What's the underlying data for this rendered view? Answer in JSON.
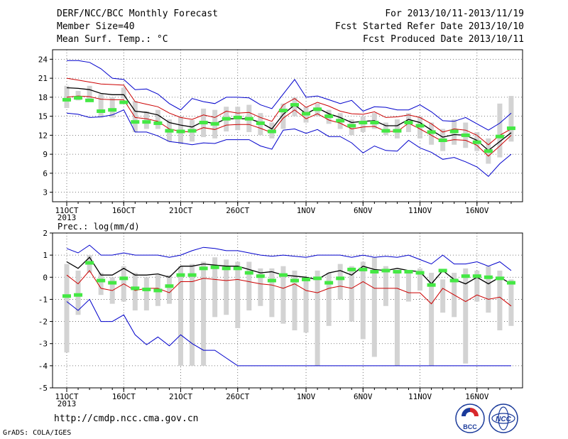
{
  "header": {
    "title": "DERF/NCC/BCC Monthly Forecast",
    "member": "Member Size=40",
    "variable": "Mean Surf. Temp.: °C",
    "period": "For 2013/10/11-2013/11/19",
    "start": "Fcst Started Refer Date 2013/10/10",
    "produced": "Fcst Produced Date 2013/10/11"
  },
  "footer": {
    "url": "http://cmdp.ncc.cma.gov.cn",
    "credit": "GrADS: COLA/IGES",
    "logo_bcc": "BCC",
    "logo_ncc": "NCC"
  },
  "chart_data": [
    {
      "type": "line",
      "ylabel": "Mean Surf. Temp.: °C",
      "xlabel": "",
      "x": [
        1,
        2,
        3,
        4,
        5,
        6,
        7,
        8,
        9,
        10,
        11,
        12,
        13,
        14,
        15,
        16,
        17,
        18,
        19,
        20,
        21,
        22,
        23,
        24,
        25,
        26,
        27,
        28,
        29,
        30,
        31,
        32,
        33,
        34,
        35,
        36,
        37,
        38,
        39,
        40
      ],
      "ylim": [
        1.5,
        25.5
      ],
      "yticks": [
        24,
        21,
        18,
        15,
        12,
        9,
        6,
        3
      ],
      "xticks": [
        {
          "x": 1,
          "label": "11OCT",
          "sub": "2013"
        },
        {
          "x": 6,
          "label": "16OCT"
        },
        {
          "x": 11,
          "label": "21OCT"
        },
        {
          "x": 16,
          "label": "26OCT"
        },
        {
          "x": 22,
          "label": "1NOV"
        },
        {
          "x": 27,
          "label": "6NOV"
        },
        {
          "x": 32,
          "label": "11NOV"
        },
        {
          "x": 37,
          "label": "16NOV"
        }
      ],
      "grid": true,
      "series": [
        {
          "role": "max",
          "color": "#0000cc",
          "values": [
            23.8,
            23.8,
            23.5,
            22.5,
            21.0,
            20.8,
            19.2,
            19.3,
            18.5,
            17.0,
            16.0,
            17.8,
            17.3,
            17.0,
            18.0,
            18.0,
            17.9,
            16.8,
            16.2,
            18.5,
            20.8,
            18.0,
            18.2,
            17.6,
            17.0,
            17.5,
            15.8,
            16.5,
            16.4,
            16.0,
            16.0,
            16.8,
            15.7,
            14.3,
            14.2,
            14.8,
            13.8,
            12.8,
            13.9,
            15.5
          ]
        },
        {
          "role": "p90",
          "color": "#cc0000",
          "values": [
            21.0,
            20.7,
            20.4,
            20.1,
            20.0,
            19.9,
            17.3,
            16.9,
            16.5,
            15.5,
            14.8,
            14.5,
            15.2,
            14.8,
            15.8,
            15.5,
            15.6,
            14.8,
            14.2,
            16.8,
            17.8,
            16.4,
            17.2,
            16.6,
            15.8,
            15.4,
            15.3,
            15.7,
            14.8,
            14.9,
            15.2,
            14.8,
            13.8,
            12.5,
            13.0,
            12.8,
            12.0,
            10.5,
            12.0,
            13.0
          ]
        },
        {
          "role": "mean",
          "color": "#000000",
          "values": [
            19.5,
            19.4,
            19.2,
            18.6,
            18.4,
            18.4,
            15.8,
            15.6,
            15.2,
            14.0,
            13.6,
            13.3,
            14.2,
            13.8,
            14.6,
            14.6,
            14.6,
            14.0,
            13.0,
            15.3,
            16.8,
            15.4,
            16.3,
            15.4,
            14.8,
            14.0,
            14.2,
            14.3,
            13.5,
            13.5,
            14.5,
            14.0,
            12.8,
            11.7,
            12.1,
            12.0,
            11.2,
            9.6,
            11.0,
            12.4
          ]
        },
        {
          "role": "p10",
          "color": "#cc0000",
          "values": [
            18.0,
            18.2,
            18.1,
            17.7,
            17.6,
            17.6,
            14.8,
            14.6,
            14.2,
            13.0,
            12.6,
            12.5,
            13.2,
            12.9,
            13.6,
            13.7,
            13.7,
            13.1,
            12.4,
            14.7,
            16.0,
            14.6,
            15.4,
            14.4,
            13.9,
            13.0,
            13.3,
            13.4,
            12.6,
            12.6,
            13.9,
            13.0,
            12.0,
            11.0,
            11.3,
            11.2,
            10.4,
            8.7,
            10.3,
            12.0
          ]
        },
        {
          "role": "min",
          "color": "#0000cc",
          "values": [
            15.5,
            15.3,
            14.8,
            14.9,
            15.2,
            16.0,
            12.5,
            12.5,
            11.9,
            11.0,
            10.8,
            10.5,
            10.8,
            10.7,
            11.3,
            11.3,
            11.3,
            10.3,
            9.8,
            12.8,
            13.0,
            12.3,
            12.9,
            11.8,
            11.8,
            10.8,
            9.2,
            10.3,
            9.6,
            9.5,
            11.2,
            10.0,
            9.3,
            8.2,
            8.5,
            7.8,
            7.0,
            5.5,
            7.5,
            9.0
          ]
        }
      ],
      "observed": [
        17.6,
        17.9,
        17.5,
        15.8,
        16.0,
        17.2,
        14.1,
        14.1,
        13.9,
        12.7,
        12.6,
        12.7,
        14.0,
        13.8,
        14.6,
        14.8,
        14.6,
        13.9,
        12.6,
        15.9,
        16.8,
        15.4,
        16.1,
        15.0,
        14.3,
        13.5,
        14.0,
        14.0,
        12.7,
        12.7,
        14.0,
        13.5,
        12.5,
        11.2,
        12.6,
        12.0,
        10.9,
        9.5,
        11.8,
        13.1
      ],
      "ranges": [
        [
          16.3,
          19.8
        ],
        [
          17.5,
          19.0
        ],
        [
          17.3,
          19.8
        ],
        [
          14.8,
          18.5
        ],
        [
          14.8,
          18.0
        ],
        [
          17.8,
          19.5
        ],
        [
          12.5,
          17.4
        ],
        [
          13.0,
          15.8
        ],
        [
          13.0,
          16.0
        ],
        [
          11.0,
          14.5
        ],
        [
          10.6,
          15.0
        ],
        [
          11.0,
          14.4
        ],
        [
          11.7,
          16.2
        ],
        [
          11.5,
          16.0
        ],
        [
          12.6,
          16.5
        ],
        [
          12.8,
          16.5
        ],
        [
          12.5,
          16.8
        ],
        [
          12.0,
          15.5
        ],
        [
          11.5,
          14.0
        ],
        [
          13.0,
          17.0
        ],
        [
          15.0,
          18.0
        ],
        [
          14.0,
          16.5
        ],
        [
          15.0,
          17.0
        ],
        [
          13.8,
          16.0
        ],
        [
          13.0,
          15.5
        ],
        [
          12.0,
          14.5
        ],
        [
          12.5,
          15.0
        ],
        [
          13.0,
          15.5
        ],
        [
          12.0,
          14.0
        ],
        [
          11.5,
          14.5
        ],
        [
          12.5,
          15.5
        ],
        [
          11.5,
          15.0
        ],
        [
          10.5,
          14.0
        ],
        [
          9.5,
          13.0
        ],
        [
          10.5,
          14.5
        ],
        [
          10.0,
          14.0
        ],
        [
          9.5,
          12.5
        ],
        [
          7.5,
          11.5
        ],
        [
          8.5,
          17.0
        ],
        [
          11.0,
          18.2
        ]
      ]
    },
    {
      "type": "line",
      "ylabel": "Prec.: log(mm/d)",
      "xlabel": "",
      "x": [
        1,
        2,
        3,
        4,
        5,
        6,
        7,
        8,
        9,
        10,
        11,
        12,
        13,
        14,
        15,
        16,
        17,
        18,
        19,
        20,
        21,
        22,
        23,
        24,
        25,
        26,
        27,
        28,
        29,
        30,
        31,
        32,
        33,
        34,
        35,
        36,
        37,
        38,
        39,
        40
      ],
      "ylim": [
        -5,
        2
      ],
      "yticks": [
        2,
        1,
        0,
        -1,
        -2,
        -3,
        -4,
        -5
      ],
      "xticks": [
        {
          "x": 1,
          "label": "11OCT",
          "sub": "2013"
        },
        {
          "x": 6,
          "label": "16OCT"
        },
        {
          "x": 11,
          "label": "21OCT"
        },
        {
          "x": 16,
          "label": "26OCT"
        },
        {
          "x": 22,
          "label": "1NOV"
        },
        {
          "x": 27,
          "label": "6NOV"
        },
        {
          "x": 32,
          "label": "11NOV"
        },
        {
          "x": 37,
          "label": "16NOV"
        }
      ],
      "grid": true,
      "series": [
        {
          "role": "max",
          "color": "#0000cc",
          "values": [
            1.3,
            1.1,
            1.45,
            1.0,
            1.0,
            1.1,
            1.0,
            1.0,
            1.0,
            0.9,
            1.0,
            1.2,
            1.35,
            1.3,
            1.2,
            1.2,
            1.1,
            1.0,
            0.95,
            1.0,
            0.95,
            0.9,
            1.0,
            1.0,
            1.0,
            0.9,
            1.0,
            0.9,
            0.95,
            0.9,
            1.0,
            0.8,
            0.6,
            1.0,
            0.6,
            0.6,
            0.7,
            0.5,
            0.7,
            0.3
          ]
        },
        {
          "role": "mean",
          "color": "#000000",
          "values": [
            0.7,
            0.4,
            0.9,
            0.1,
            0.1,
            0.4,
            0.1,
            0.1,
            0.15,
            0.0,
            0.5,
            0.5,
            0.6,
            0.55,
            0.5,
            0.5,
            0.35,
            0.2,
            0.25,
            0.1,
            0.05,
            0.0,
            -0.1,
            0.2,
            0.3,
            0.1,
            0.5,
            0.35,
            0.3,
            0.4,
            0.3,
            0.25,
            -0.3,
            0.3,
            -0.1,
            -0.3,
            0.0,
            -0.3,
            0.0,
            -0.3
          ]
        },
        {
          "role": "p10",
          "color": "#cc0000",
          "values": [
            0.1,
            -0.3,
            0.3,
            -0.5,
            -0.6,
            -0.3,
            -0.6,
            -0.5,
            -0.5,
            -0.7,
            -0.2,
            -0.2,
            -0.05,
            -0.1,
            -0.15,
            -0.1,
            -0.2,
            -0.3,
            -0.35,
            -0.5,
            -0.3,
            -0.6,
            -0.7,
            -0.5,
            -0.4,
            -0.5,
            -0.2,
            -0.5,
            -0.5,
            -0.5,
            -0.7,
            -0.7,
            -1.2,
            -0.5,
            -0.8,
            -1.1,
            -0.8,
            -1.0,
            -0.9,
            -1.3
          ]
        },
        {
          "role": "min",
          "color": "#0000cc",
          "values": [
            -1.1,
            -1.5,
            -1.0,
            -2.0,
            -2.0,
            -1.7,
            -2.6,
            -3.05,
            -2.7,
            -3.1,
            -2.6,
            -3.0,
            -3.3,
            -3.3,
            -3.65,
            -4.0,
            -4.0,
            -4.0,
            -4.0,
            -4.0,
            -4.0,
            -4.0,
            -4.0,
            -4.0,
            -4.0,
            -4.0,
            -4.0,
            -4.0,
            -4.0,
            -4.0,
            -4.0,
            -4.0,
            -4.0,
            -4.0,
            -4.0,
            -4.0,
            -4.0,
            -4.0,
            -4.0,
            -4.0
          ]
        }
      ],
      "observed": [
        -0.85,
        -0.8,
        0.65,
        -0.15,
        -0.25,
        -0.05,
        -0.5,
        -0.55,
        -0.6,
        -0.4,
        0.1,
        0.1,
        0.4,
        0.45,
        0.4,
        0.4,
        0.2,
        0.05,
        -0.15,
        0.1,
        -0.15,
        -0.1,
        -0.05,
        -0.25,
        -0.05,
        0.35,
        0.35,
        0.25,
        0.3,
        0.25,
        0.25,
        0.2,
        -0.35,
        0.3,
        -0.15,
        0.05,
        0.05,
        0.0,
        -0.05,
        -0.25
      ],
      "ranges": [
        [
          -3.4,
          0.6
        ],
        [
          -1.7,
          0.3
        ],
        [
          0.2,
          1.0
        ],
        [
          -0.8,
          0.2
        ],
        [
          -1.2,
          0.0
        ],
        [
          -1.1,
          0.5
        ],
        [
          -1.5,
          0.2
        ],
        [
          -1.5,
          0.0
        ],
        [
          -1.3,
          0.1
        ],
        [
          -1.2,
          0.1
        ],
        [
          -4.0,
          0.5
        ],
        [
          -4.0,
          0.6
        ],
        [
          -4.0,
          0.7
        ],
        [
          -1.8,
          0.9
        ],
        [
          -1.7,
          0.8
        ],
        [
          -2.3,
          0.7
        ],
        [
          -1.5,
          0.7
        ],
        [
          -1.3,
          0.4
        ],
        [
          -1.8,
          0.4
        ],
        [
          -2.1,
          0.5
        ],
        [
          -2.4,
          0.3
        ],
        [
          -2.5,
          0.0
        ],
        [
          -4.0,
          0.3
        ],
        [
          -2.2,
          0.2
        ],
        [
          -1.0,
          0.6
        ],
        [
          -2.0,
          0.5
        ],
        [
          -2.8,
          0.7
        ],
        [
          -3.6,
          0.9
        ],
        [
          -1.3,
          0.5
        ],
        [
          -4.0,
          0.3
        ],
        [
          -1.1,
          0.3
        ],
        [
          -0.6,
          0.4
        ],
        [
          -4.0,
          0.2
        ],
        [
          -1.6,
          -0.1
        ],
        [
          -1.8,
          0.2
        ],
        [
          -3.9,
          0.4
        ],
        [
          -1.1,
          0.3
        ],
        [
          -1.6,
          0.5
        ],
        [
          -2.4,
          0.3
        ],
        [
          -2.2,
          -0.1
        ]
      ]
    }
  ]
}
